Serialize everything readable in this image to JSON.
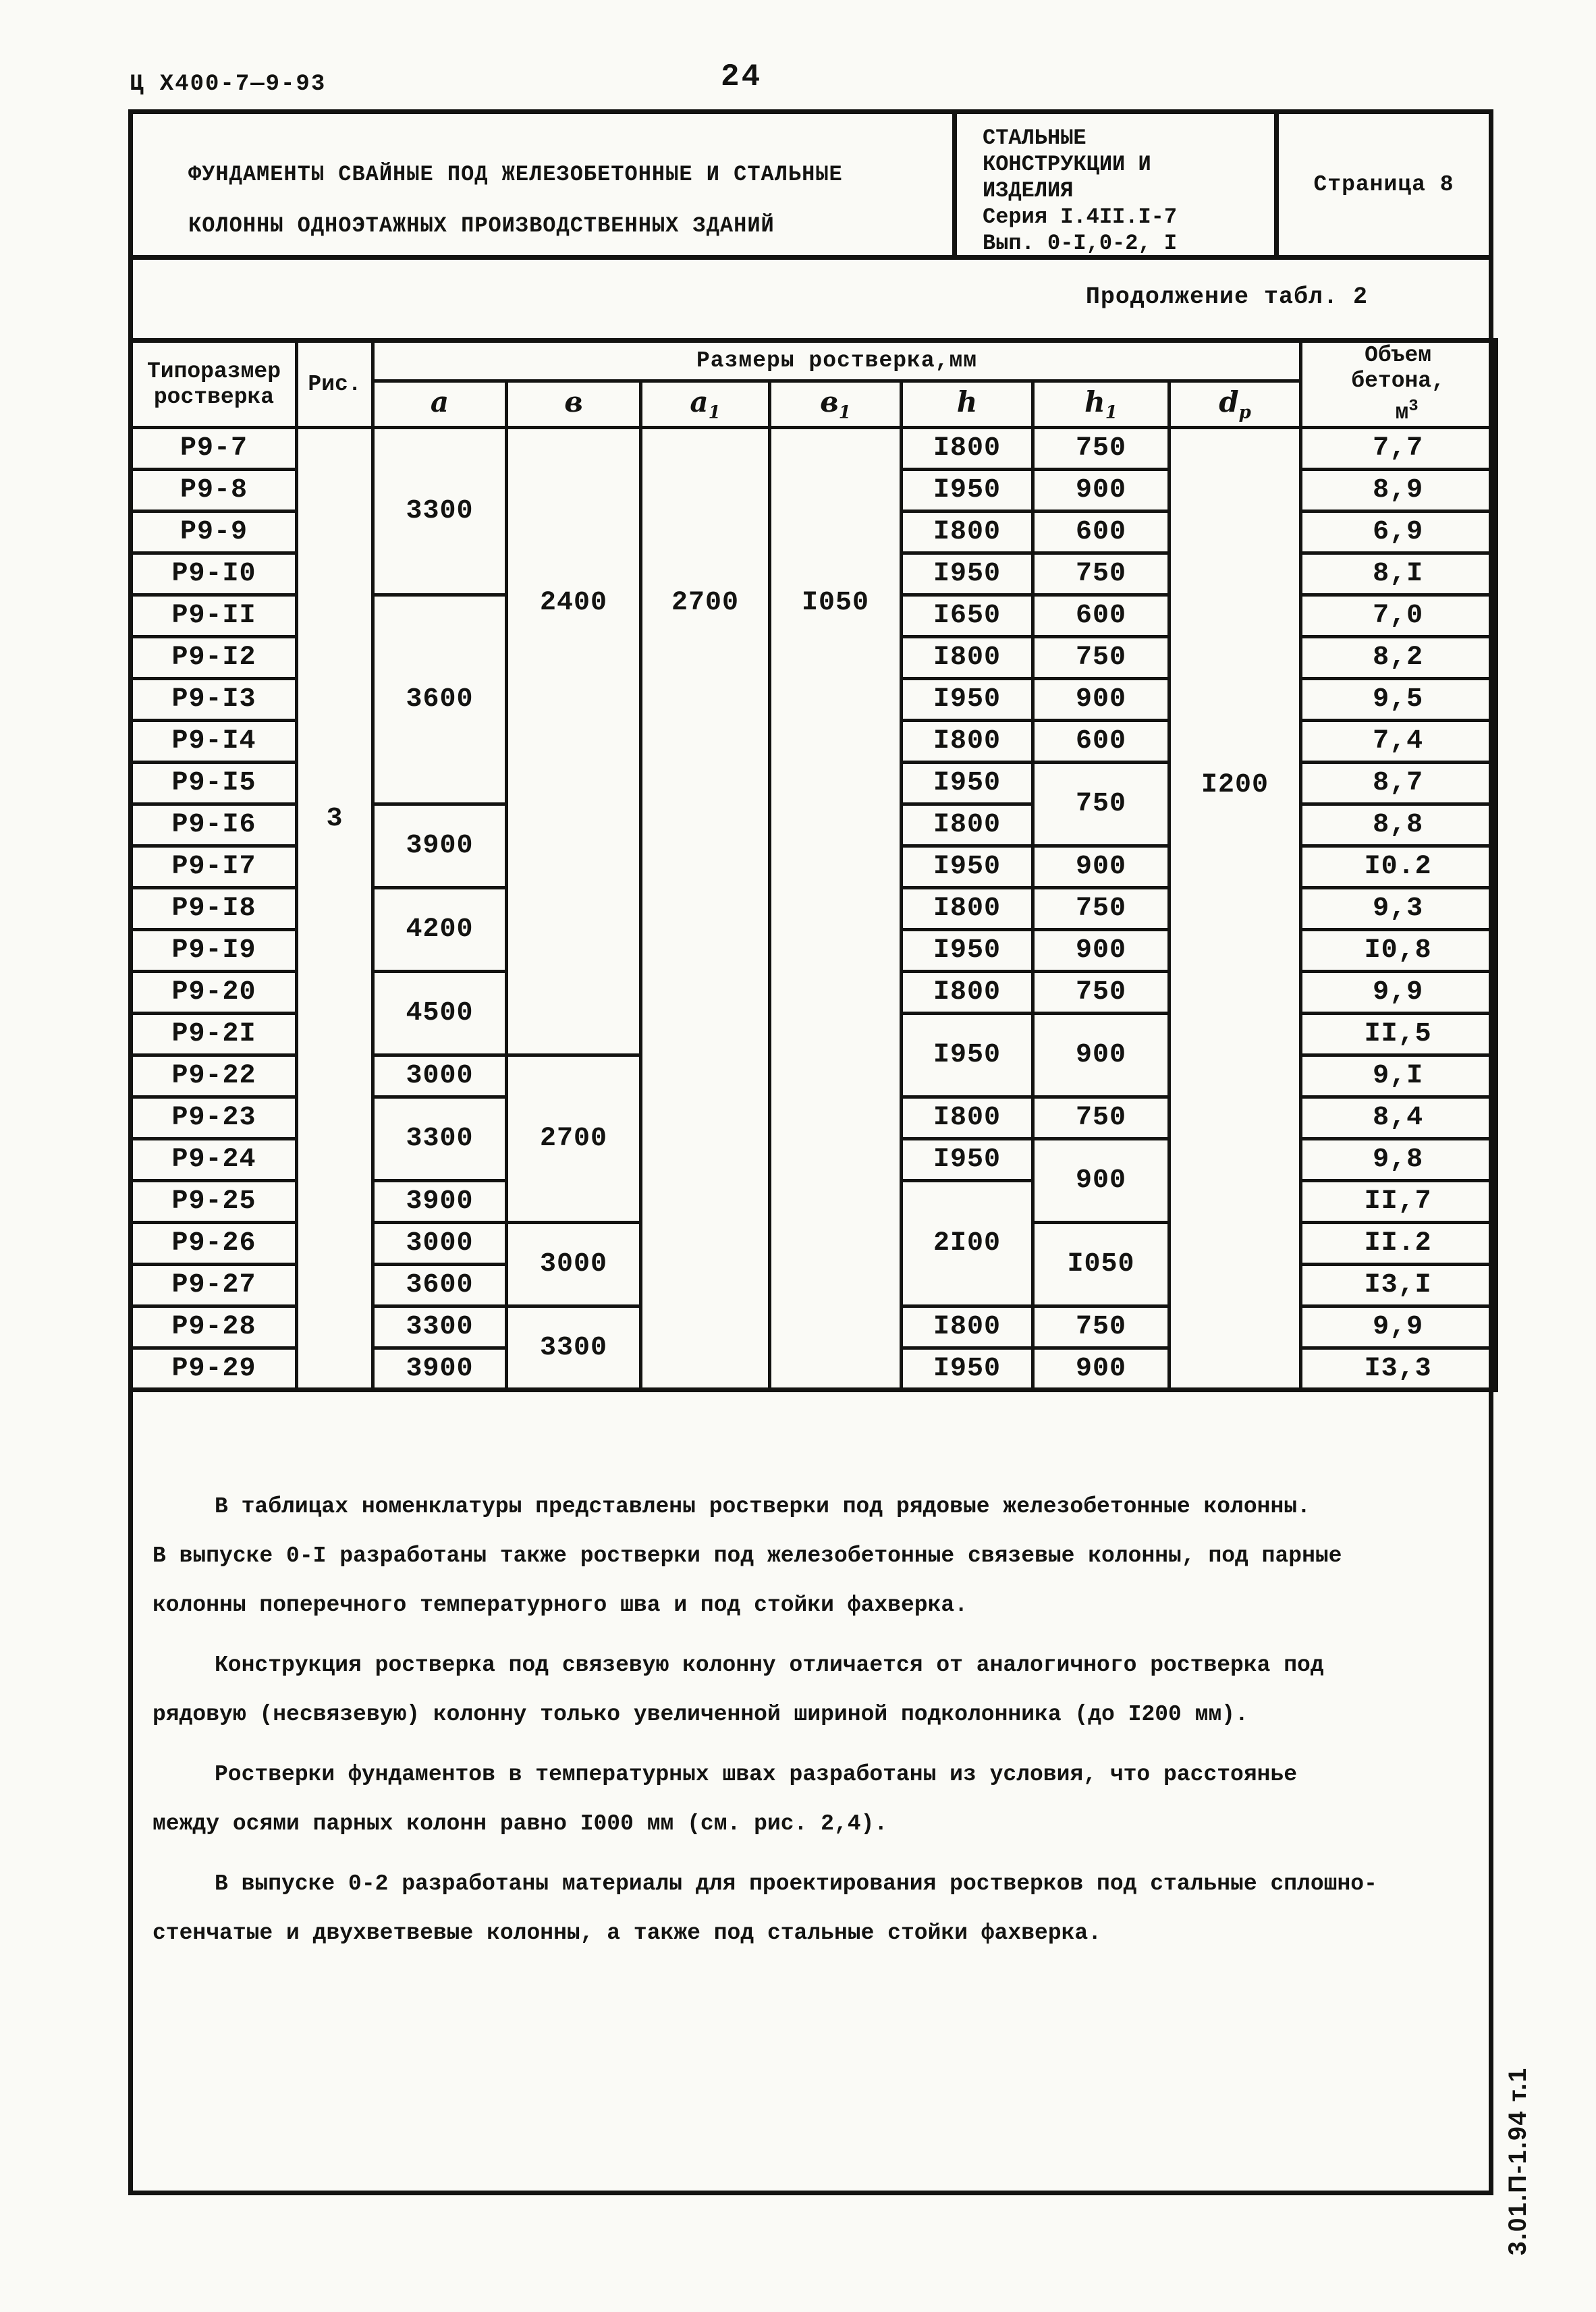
{
  "colors": {
    "ink": "#131311",
    "paper": "#fafaf6"
  },
  "page": {
    "doc_code": "Ц Х400-7—9-93",
    "page_number": "24",
    "title_line1": "ФУНДАМЕНТЫ СВАЙНЫЕ ПОД ЖЕЛЕЗОБЕТОННЫЕ И СТАЛЬНЫЕ",
    "title_line2": "КОЛОННЫ ОДНОЭТАЖНЫХ ПРОИЗВОДСТВЕННЫХ ЗДАНИЙ",
    "series_block": [
      "СТАЛЬНЫЕ",
      "КОНСТРУКЦИИ И",
      "ИЗДЕЛИЯ",
      "Серия I.4II.I-7",
      "Вып. 0-I,0-2, I"
    ],
    "page_label": "Страница 8",
    "continuation": "Продолжение табл. 2",
    "side_stamp": "3.01.П-1.94 т.1"
  },
  "table": {
    "header": {
      "col_type_l1": "Типоразмер",
      "col_type_l2": "ростверка",
      "col_fig": "Рис.",
      "group": "Размеры ростверка,мм",
      "vol_l1": "Объем",
      "vol_l2": "бетона,",
      "vol_unit_base": "м",
      "vol_unit_sup": "3",
      "subcols": [
        {
          "b": "а",
          "s": ""
        },
        {
          "b": "в",
          "s": ""
        },
        {
          "b": "а",
          "s": "1"
        },
        {
          "b": "в",
          "s": "1"
        },
        {
          "b": "h",
          "s": ""
        },
        {
          "b": "h",
          "s": "1"
        },
        {
          "b": "d",
          "s": "р"
        }
      ]
    },
    "rows": [
      {
        "cells": [
          {
            "t": "Р9-7"
          },
          {
            "t": "3",
            "rs": 23,
            "pt": 555
          },
          {
            "t": "3300",
            "rs": 4
          },
          {
            "t": "2400",
            "rs": 15,
            "pt": 235
          },
          {
            "t": "2700",
            "rs": 23,
            "pt": 235
          },
          {
            "t": "I050",
            "rs": 23,
            "pt": 235
          },
          {
            "t": "I800"
          },
          {
            "t": "750"
          },
          {
            "t": "I200",
            "rs": 23,
            "pt": 505
          },
          {
            "t": "7,7"
          }
        ]
      },
      {
        "cells": [
          {
            "t": "Р9-8"
          },
          {
            "t": "I950"
          },
          {
            "t": "900"
          },
          {
            "t": "8,9"
          }
        ]
      },
      {
        "cells": [
          {
            "t": "Р9-9"
          },
          {
            "t": "I800"
          },
          {
            "t": "600"
          },
          {
            "t": "6,9"
          }
        ]
      },
      {
        "cells": [
          {
            "t": "Р9-I0"
          },
          {
            "t": "I950"
          },
          {
            "t": "750"
          },
          {
            "t": "8,I"
          }
        ]
      },
      {
        "cells": [
          {
            "t": "Р9-II"
          },
          {
            "t": "3600",
            "rs": 5
          },
          {
            "t": "I650"
          },
          {
            "t": "600"
          },
          {
            "t": "7,0"
          }
        ]
      },
      {
        "cells": [
          {
            "t": "Р9-I2"
          },
          {
            "t": "I800"
          },
          {
            "t": "750"
          },
          {
            "t": "8,2"
          }
        ]
      },
      {
        "cells": [
          {
            "t": "Р9-I3"
          },
          {
            "t": "I950"
          },
          {
            "t": "900"
          },
          {
            "t": "9,5"
          }
        ]
      },
      {
        "cells": [
          {
            "t": "Р9-I4"
          },
          {
            "t": "I800"
          },
          {
            "t": "600"
          },
          {
            "t": "7,4"
          }
        ]
      },
      {
        "cells": [
          {
            "t": "Р9-I5"
          },
          {
            "t": "I950"
          },
          {
            "t": "750",
            "rs": 2
          },
          {
            "t": "8,7"
          }
        ]
      },
      {
        "cells": [
          {
            "t": "Р9-I6"
          },
          {
            "t": "3900",
            "rs": 2
          },
          {
            "t": "I800"
          },
          {
            "t": "8,8"
          }
        ]
      },
      {
        "cells": [
          {
            "t": "Р9-I7"
          },
          {
            "t": "I950"
          },
          {
            "t": "900"
          },
          {
            "t": "I0.2"
          }
        ]
      },
      {
        "cells": [
          {
            "t": "Р9-I8"
          },
          {
            "t": "4200",
            "rs": 2
          },
          {
            "t": "I800"
          },
          {
            "t": "750"
          },
          {
            "t": "9,3"
          }
        ]
      },
      {
        "cells": [
          {
            "t": "Р9-I9"
          },
          {
            "t": "I950"
          },
          {
            "t": "900"
          },
          {
            "t": "I0,8"
          }
        ]
      },
      {
        "cells": [
          {
            "t": "Р9-20"
          },
          {
            "t": "4500",
            "rs": 2
          },
          {
            "t": "I800"
          },
          {
            "t": "750"
          },
          {
            "t": "9,9"
          }
        ]
      },
      {
        "cells": [
          {
            "t": "Р9-2I"
          },
          {
            "t": "I950",
            "rs": 2
          },
          {
            "t": "900",
            "rs": 2
          },
          {
            "t": "II,5"
          }
        ]
      },
      {
        "cells": [
          {
            "t": "Р9-22"
          },
          {
            "t": "3000"
          },
          {
            "t": "2700",
            "rs": 4
          },
          {
            "t": "9,I"
          }
        ]
      },
      {
        "cells": [
          {
            "t": "Р9-23"
          },
          {
            "t": "3300",
            "rs": 2
          },
          {
            "t": "I800"
          },
          {
            "t": "750"
          },
          {
            "t": "8,4"
          }
        ]
      },
      {
        "cells": [
          {
            "t": "Р9-24"
          },
          {
            "t": "I950"
          },
          {
            "t": "900",
            "rs": 2
          },
          {
            "t": "9,8"
          }
        ]
      },
      {
        "cells": [
          {
            "t": "Р9-25"
          },
          {
            "t": "3900"
          },
          {
            "t": "2I00",
            "rs": 3
          },
          {
            "t": "II,7"
          }
        ]
      },
      {
        "cells": [
          {
            "t": "Р9-26"
          },
          {
            "t": "3000"
          },
          {
            "t": "3000",
            "rs": 2
          },
          {
            "t": "I050",
            "rs": 2
          },
          {
            "t": "II.2"
          }
        ]
      },
      {
        "cells": [
          {
            "t": "Р9-27"
          },
          {
            "t": "3600"
          },
          {
            "t": "I3,I"
          }
        ]
      },
      {
        "cells": [
          {
            "t": "Р9-28"
          },
          {
            "t": "3300"
          },
          {
            "t": "3300",
            "rs": 2
          },
          {
            "t": "I800"
          },
          {
            "t": "750"
          },
          {
            "t": "9,9"
          }
        ]
      },
      {
        "cells": [
          {
            "t": "Р9-29"
          },
          {
            "t": "3900"
          },
          {
            "t": "I950"
          },
          {
            "t": "900"
          },
          {
            "t": "I3,3"
          }
        ]
      }
    ]
  },
  "paragraphs": [
    {
      "t": "В таблицах номенклатуры представлены ростверки под рядовые железобетонные колонны.",
      "ind": true
    },
    {
      "t": "В выпуске 0-I разработаны также ростверки под железобетонные связевые колонны, под парные",
      "ind": false
    },
    {
      "t": "колонны поперечного температурного шва и под стойки фахверка.",
      "ind": false
    },
    {
      "t": "Конструкция ростверка под связевую колонну отличается от аналогичного ростверка под",
      "ind": true
    },
    {
      "t": "рядовую (несвязевую) колонну только увеличенной шириной подколонника (до I200 мм).",
      "ind": false
    },
    {
      "t": "Ростверки фундаментов в температурных швах разработаны из условия, что расстоянье",
      "ind": true
    },
    {
      "t": "между осями парных колонн равно I000 мм (см. рис. 2,4).",
      "ind": false
    },
    {
      "t": "В выпуске 0-2 разработаны материалы для проектирования ростверков под стальные сплошно-",
      "ind": true
    },
    {
      "t": "стенчатые и двухветвевые колонны, а также под стальные стойки фахверка.",
      "ind": false
    }
  ]
}
